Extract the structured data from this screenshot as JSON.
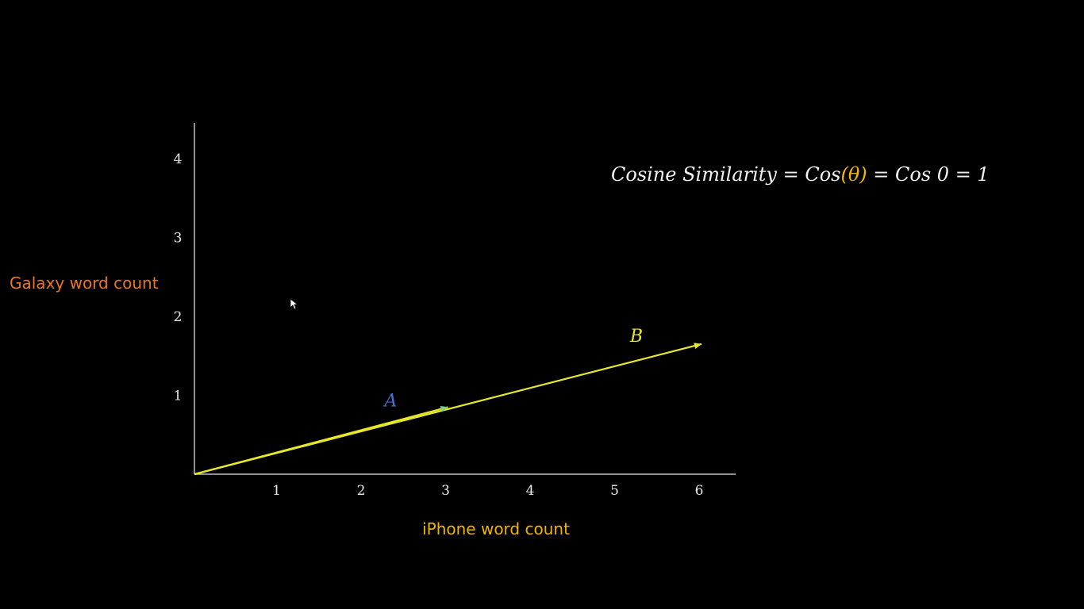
{
  "chart_data": {
    "type": "line",
    "xlabel": "iPhone word count",
    "ylabel": "Galaxy word count",
    "xlim": [
      0,
      6.3
    ],
    "ylim": [
      0,
      4.4
    ],
    "x_ticks": [
      "1",
      "2",
      "3",
      "4",
      "5",
      "6"
    ],
    "y_ticks": [
      "1",
      "2",
      "3",
      "4"
    ],
    "grid": false,
    "vectors": [
      {
        "name": "A",
        "from": [
          0,
          0
        ],
        "to": [
          3,
          0.85
        ],
        "label_color": "#4a6fd6"
      },
      {
        "name": "B",
        "from": [
          0,
          0
        ],
        "to": [
          6,
          1.65
        ],
        "label_color": "#e8e82a"
      }
    ],
    "colors": {
      "vector_line": "#e8e82a",
      "axis": "#bfbfbf",
      "xlabel": "#f0b400",
      "ylabel": "#e8742a"
    }
  },
  "formula": {
    "part1": "Cosine Similarity = Cos",
    "part2": "(θ)",
    "part3": " = Cos 0 = 1"
  },
  "cursor_icon": "arrow-cursor-icon"
}
